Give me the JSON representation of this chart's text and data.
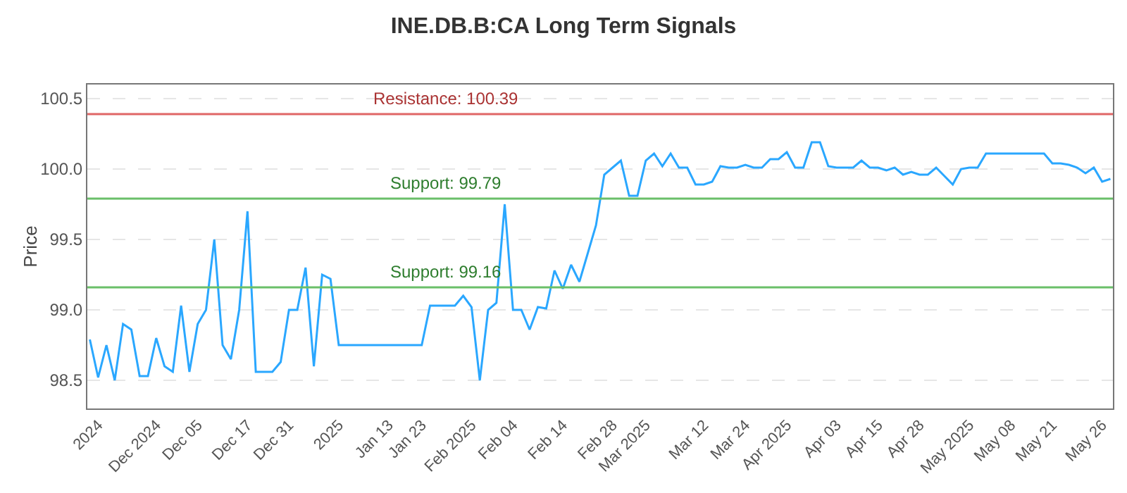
{
  "chart_data": {
    "type": "line",
    "title": "INE.DB.B:CA Long Term Signals",
    "ylabel": "Price",
    "categories": [
      null,
      "2024",
      null,
      null,
      null,
      null,
      null,
      null,
      "Dec 2024",
      null,
      null,
      null,
      null,
      "Dec 05",
      null,
      null,
      null,
      null,
      null,
      "Dec 17",
      null,
      null,
      null,
      null,
      "Dec 31",
      null,
      null,
      null,
      null,
      null,
      "2025",
      null,
      null,
      null,
      null,
      null,
      "Jan 13",
      null,
      null,
      null,
      "Jan 23",
      null,
      null,
      null,
      null,
      null,
      "Feb 2025",
      null,
      null,
      null,
      null,
      "Feb 04",
      null,
      null,
      null,
      null,
      null,
      "Feb 14",
      null,
      null,
      null,
      null,
      null,
      "Feb 28",
      null,
      null,
      null,
      "Mar 2025",
      null,
      null,
      null,
      null,
      null,
      null,
      "Mar 12",
      null,
      null,
      null,
      null,
      "Mar 24",
      null,
      null,
      null,
      null,
      "Apr 2025",
      null,
      null,
      null,
      null,
      null,
      "Apr 03",
      null,
      null,
      null,
      null,
      "Apr 15",
      null,
      null,
      null,
      null,
      "Apr 28",
      null,
      null,
      null,
      null,
      null,
      "May 2025",
      null,
      null,
      null,
      null,
      "May 08",
      null,
      null,
      null,
      null,
      "May 21",
      null,
      null,
      null,
      null,
      null,
      "May 26",
      null
    ],
    "series": [
      {
        "color": "#2aa7ff",
        "values": [
          98.79,
          98.52,
          98.75,
          98.5,
          98.9,
          98.86,
          98.53,
          98.53,
          98.8,
          98.6,
          98.56,
          99.03,
          98.56,
          98.9,
          99.0,
          99.5,
          98.75,
          98.65,
          99.0,
          99.7,
          98.56,
          98.56,
          98.56,
          98.63,
          99.0,
          99.0,
          99.3,
          98.6,
          99.25,
          99.22,
          98.75,
          98.75,
          98.75,
          98.75,
          98.75,
          98.75,
          98.75,
          98.75,
          98.75,
          98.75,
          98.75,
          99.03,
          99.03,
          99.03,
          99.03,
          99.1,
          99.02,
          98.5,
          99.0,
          99.05,
          99.75,
          99.0,
          99.0,
          98.86,
          99.02,
          99.01,
          99.28,
          99.15,
          99.32,
          99.2,
          99.4,
          99.6,
          99.96,
          100.01,
          100.06,
          99.81,
          99.81,
          100.06,
          100.11,
          100.02,
          100.11,
          100.01,
          100.01,
          99.89,
          99.89,
          99.91,
          100.02,
          100.01,
          100.01,
          100.03,
          100.01,
          100.01,
          100.07,
          100.07,
          100.12,
          100.01,
          100.01,
          100.19,
          100.19,
          100.02,
          100.01,
          100.01,
          100.01,
          100.06,
          100.01,
          100.01,
          99.99,
          100.01,
          99.96,
          99.98,
          99.96,
          99.96,
          100.01,
          99.95,
          99.89,
          100.0,
          100.01,
          100.01,
          100.11,
          100.11,
          100.11,
          100.11,
          100.11,
          100.11,
          100.11,
          100.11,
          100.04,
          100.04,
          100.03,
          100.01,
          99.97,
          100.01,
          99.91,
          99.93
        ]
      }
    ],
    "ylim": [
      98.3,
      100.6
    ],
    "yticks": [
      {
        "value": 98.5,
        "label": "98.5"
      },
      {
        "value": 99,
        "label": "99.0"
      },
      {
        "value": 99.5,
        "label": "99.5"
      },
      {
        "value": 100,
        "label": "100.0"
      },
      {
        "value": 100.5,
        "label": "100.5"
      }
    ],
    "grid": "y",
    "marker": "none",
    "line_style": "solid",
    "ref_lines": [
      {
        "axis": "y",
        "value": 100.39,
        "label": "Resistance: 100.39",
        "color": "#e06666"
      },
      {
        "axis": "y",
        "value": 99.79,
        "label": "Support: 99.79",
        "color": "#6abf69"
      },
      {
        "axis": "y",
        "value": 99.16,
        "label": "Support: 99.16",
        "color": "#6abf69"
      }
    ]
  }
}
